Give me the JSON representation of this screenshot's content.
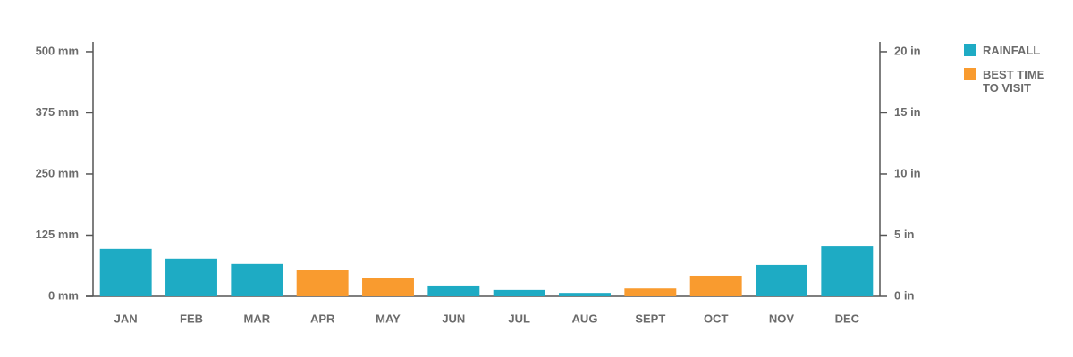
{
  "chart_data": {
    "type": "bar",
    "categories": [
      "JAN",
      "FEB",
      "MAR",
      "APR",
      "MAY",
      "JUN",
      "JUL",
      "AUG",
      "SEPT",
      "OCT",
      "NOV",
      "DEC"
    ],
    "series": [
      {
        "name": "RAINFALL",
        "color": "#1eabc4",
        "values": [
          97,
          77,
          66,
          null,
          null,
          22,
          13,
          7,
          null,
          null,
          64,
          102
        ]
      },
      {
        "name": "BEST TIME TO VISIT",
        "color": "#f99b2f",
        "values": [
          null,
          null,
          null,
          53,
          38,
          null,
          null,
          null,
          16,
          42,
          null,
          null
        ]
      }
    ],
    "ylim": [
      0,
      520
    ],
    "yticks": [
      {
        "value": 0,
        "label": "0 mm"
      },
      {
        "value": 125,
        "label": "125 mm"
      },
      {
        "value": 250,
        "label": "250 mm"
      },
      {
        "value": 375,
        "label": "375 mm"
      },
      {
        "value": 500,
        "label": "500 mm"
      }
    ],
    "y2lim": [
      0,
      20.8
    ],
    "y2ticks": [
      {
        "value": 0,
        "label": "0 in"
      },
      {
        "value": 5,
        "label": "5 in"
      },
      {
        "value": 10,
        "label": "10 in"
      },
      {
        "value": 15,
        "label": "15 in"
      },
      {
        "value": 20,
        "label": "20 in"
      }
    ],
    "legend": "right"
  }
}
